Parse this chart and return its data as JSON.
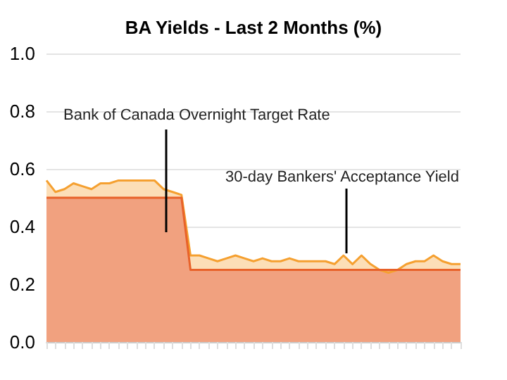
{
  "chart_data": {
    "type": "area",
    "title": "BA Yields - Last 2 Months (%)",
    "categories": [
      null,
      null,
      null,
      null,
      null,
      null,
      null,
      null,
      null,
      null,
      null,
      null,
      null,
      null,
      null,
      null,
      null,
      null,
      null,
      null,
      null,
      null,
      null,
      null,
      null,
      null,
      null,
      null,
      null,
      null,
      null,
      null,
      null,
      null,
      null,
      null,
      null,
      null,
      null,
      null,
      null,
      null,
      null,
      null,
      null,
      null,
      null
    ],
    "series": [
      {
        "name": "30-day Bankers' Acceptance Yield",
        "color": "#f5a030",
        "values": [
          0.56,
          0.52,
          0.53,
          0.55,
          0.54,
          0.53,
          0.55,
          0.55,
          0.56,
          0.56,
          0.56,
          0.56,
          0.56,
          0.53,
          0.52,
          0.51,
          0.3,
          0.3,
          0.29,
          0.28,
          0.29,
          0.3,
          0.29,
          0.28,
          0.29,
          0.28,
          0.28,
          0.29,
          0.28,
          0.28,
          0.28,
          0.28,
          0.27,
          0.3,
          0.27,
          0.3,
          0.27,
          0.25,
          0.24,
          0.25,
          0.27,
          0.28,
          0.28,
          0.3,
          0.28,
          0.27,
          0.27
        ]
      },
      {
        "name": "Bank of Canada Overnight Target Rate",
        "color": "#e8622a",
        "values": [
          0.5,
          0.5,
          0.5,
          0.5,
          0.5,
          0.5,
          0.5,
          0.5,
          0.5,
          0.5,
          0.5,
          0.5,
          0.5,
          0.5,
          0.5,
          0.5,
          0.25,
          0.25,
          0.25,
          0.25,
          0.25,
          0.25,
          0.25,
          0.25,
          0.25,
          0.25,
          0.25,
          0.25,
          0.25,
          0.25,
          0.25,
          0.25,
          0.25,
          0.25,
          0.25,
          0.25,
          0.25,
          0.25,
          0.25,
          0.25,
          0.25,
          0.25,
          0.25,
          0.25,
          0.25,
          0.25,
          0.25
        ]
      }
    ],
    "ylim": [
      0,
      1.0
    ],
    "yticks": [
      {
        "value": 0,
        "label": "0.0"
      },
      {
        "value": 0.2,
        "label": "0.2"
      },
      {
        "value": 0.4,
        "label": "0.4"
      },
      {
        "value": 0.6,
        "label": "0.6"
      },
      {
        "value": 0.8,
        "label": "0.8"
      },
      {
        "value": 1.0,
        "label": "1.0"
      }
    ],
    "grid": "y",
    "legend": false,
    "marker": "none"
  }
}
